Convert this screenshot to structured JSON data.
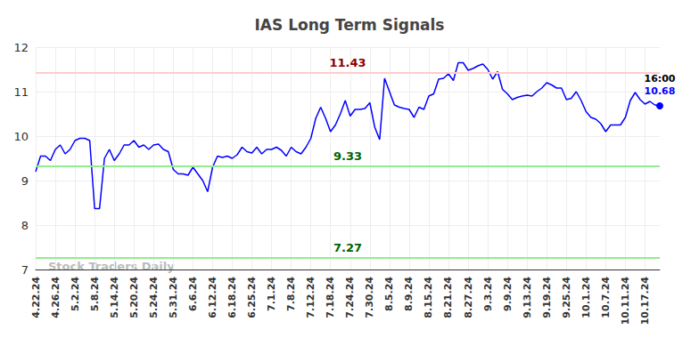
{
  "chart_data": {
    "type": "line",
    "title": "IAS Long Term Signals",
    "watermark": "Stock Traders Daily",
    "last_time": "16:00",
    "color": "#0000ff",
    "grid": true,
    "ylim": [
      7,
      12
    ],
    "yticks": [
      7,
      8,
      9,
      10,
      11,
      12
    ],
    "reference_lines": [
      {
        "value": 11.43,
        "color": "#ffcccc",
        "text_color": "#8b0000"
      },
      {
        "value": 9.33,
        "color": "#90ee90",
        "text_color": "#006400"
      },
      {
        "value": 7.27,
        "color": "#90ee90",
        "text_color": "#006400"
      }
    ],
    "categories": [
      "4.22.24",
      null,
      null,
      null,
      "4.26.24",
      null,
      null,
      null,
      "5.2.24",
      null,
      null,
      null,
      "5.8.24",
      null,
      null,
      null,
      "5.14.24",
      null,
      null,
      null,
      "5.20.24",
      null,
      null,
      null,
      "5.24.24",
      null,
      null,
      null,
      "5.31.24",
      null,
      null,
      null,
      "6.6.24",
      null,
      null,
      null,
      "6.12.24",
      null,
      null,
      null,
      "6.18.24",
      null,
      null,
      null,
      "6.25.24",
      null,
      null,
      null,
      "7.1.24",
      null,
      null,
      null,
      "7.8.24",
      null,
      null,
      null,
      "7.12.24",
      null,
      null,
      null,
      "7.18.24",
      null,
      null,
      null,
      "7.24.24",
      null,
      null,
      null,
      "7.30.24",
      null,
      null,
      null,
      "8.5.24",
      null,
      null,
      null,
      "8.9.24",
      null,
      null,
      null,
      "8.15.24",
      null,
      null,
      null,
      "8.21.24",
      null,
      null,
      null,
      "8.27.24",
      null,
      null,
      null,
      "9.3.24",
      null,
      null,
      null,
      "9.9.24",
      null,
      null,
      null,
      "9.13.24",
      null,
      null,
      null,
      "9.19.24",
      null,
      null,
      null,
      "9.25.24",
      null,
      null,
      null,
      "10.1.24",
      null,
      null,
      null,
      "10.7.24",
      null,
      null,
      null,
      "10.11.24",
      null,
      null,
      null,
      "10.17.24",
      null,
      null,
      null
    ],
    "values": [
      9.2,
      9.55,
      9.55,
      9.45,
      9.7,
      9.8,
      9.6,
      9.7,
      9.9,
      9.95,
      9.95,
      9.9,
      8.37,
      8.37,
      9.5,
      9.7,
      9.45,
      9.6,
      9.8,
      9.8,
      9.9,
      9.75,
      9.8,
      9.7,
      9.8,
      9.82,
      9.7,
      9.65,
      9.25,
      9.15,
      9.15,
      9.12,
      9.3,
      9.15,
      9.0,
      8.75,
      9.3,
      9.55,
      9.52,
      9.55,
      9.5,
      9.58,
      9.75,
      9.65,
      9.62,
      9.75,
      9.6,
      9.7,
      9.7,
      9.75,
      9.68,
      9.55,
      9.75,
      9.65,
      9.6,
      9.75,
      9.95,
      10.4,
      10.65,
      10.4,
      10.1,
      10.25,
      10.5,
      10.8,
      10.45,
      10.6,
      10.6,
      10.62,
      10.75,
      10.2,
      9.92,
      11.3,
      11.0,
      10.7,
      10.65,
      10.62,
      10.6,
      10.42,
      10.65,
      10.6,
      10.9,
      10.95,
      11.28,
      11.3,
      11.4,
      11.25,
      11.65,
      11.65,
      11.48,
      11.52,
      11.58,
      11.62,
      11.5,
      11.28,
      11.45,
      11.05,
      10.95,
      10.82,
      10.87,
      10.9,
      10.92,
      10.9,
      11.0,
      11.08,
      11.2,
      11.15,
      11.08,
      11.08,
      10.82,
      10.85,
      11.0,
      10.8,
      10.55,
      10.42,
      10.38,
      10.28,
      10.1,
      10.25,
      10.25,
      10.25,
      10.42,
      10.8,
      10.98,
      10.82,
      10.72,
      10.78,
      10.7,
      10.68
    ]
  }
}
